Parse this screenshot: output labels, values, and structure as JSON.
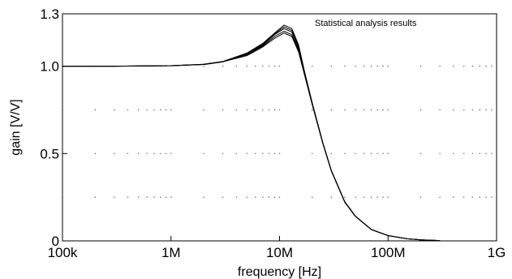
{
  "chart_data": {
    "type": "line",
    "title": "",
    "annotation": "Statistical analysis results",
    "xlabel": "frequency [Hz]",
    "ylabel": "gain [V/V]",
    "x_scale": "log",
    "xlim": [
      100000,
      1000000000
    ],
    "ylim": [
      0,
      1.3
    ],
    "x_ticks": [
      {
        "value": 100000,
        "label": "100k"
      },
      {
        "value": 1000000,
        "label": "1M"
      },
      {
        "value": 10000000,
        "label": "10M"
      },
      {
        "value": 100000000,
        "label": "100M"
      },
      {
        "value": 1000000000,
        "label": "1G"
      }
    ],
    "y_ticks": [
      {
        "value": 0,
        "label": "0"
      },
      {
        "value": 0.5,
        "label": "0.5"
      },
      {
        "value": 1.0,
        "label": "1.0"
      },
      {
        "value": 1.3,
        "label": "1.3"
      }
    ],
    "grid": "dotted",
    "legend": "none",
    "line_color": "#000000",
    "x": [
      100000,
      300000,
      1000000,
      2000000,
      3000000,
      5000000,
      7000000,
      9000000,
      11000000,
      13000000,
      15000000,
      17000000,
      20000000,
      25000000,
      30000000,
      40000000,
      50000000,
      70000000,
      100000000,
      150000000,
      200000000,
      300000000
    ],
    "series": [
      {
        "values": [
          1.0,
          1.0,
          1.003,
          1.01,
          1.025,
          1.06,
          1.11,
          1.16,
          1.19,
          1.17,
          1.08,
          0.95,
          0.78,
          0.56,
          0.4,
          0.22,
          0.14,
          0.065,
          0.03,
          0.012,
          0.006,
          0.002
        ]
      },
      {
        "values": [
          1.0,
          1.0,
          1.003,
          1.01,
          1.025,
          1.065,
          1.115,
          1.17,
          1.2,
          1.18,
          1.09,
          0.955,
          0.782,
          0.561,
          0.401,
          0.221,
          0.14,
          0.065,
          0.03,
          0.012,
          0.006,
          0.002
        ]
      },
      {
        "values": [
          1.0,
          1.0,
          1.003,
          1.01,
          1.025,
          1.07,
          1.12,
          1.18,
          1.215,
          1.195,
          1.1,
          0.96,
          0.785,
          0.562,
          0.402,
          0.222,
          0.141,
          0.065,
          0.03,
          0.012,
          0.006,
          0.002
        ]
      },
      {
        "values": [
          1.0,
          1.0,
          1.003,
          1.011,
          1.026,
          1.072,
          1.125,
          1.185,
          1.225,
          1.205,
          1.11,
          0.965,
          0.788,
          0.563,
          0.403,
          0.223,
          0.141,
          0.066,
          0.03,
          0.012,
          0.006,
          0.002
        ]
      },
      {
        "values": [
          1.0,
          1.0,
          1.003,
          1.011,
          1.027,
          1.075,
          1.13,
          1.19,
          1.235,
          1.215,
          1.12,
          0.97,
          0.79,
          0.565,
          0.404,
          0.224,
          0.142,
          0.066,
          0.03,
          0.012,
          0.006,
          0.002
        ]
      }
    ]
  }
}
